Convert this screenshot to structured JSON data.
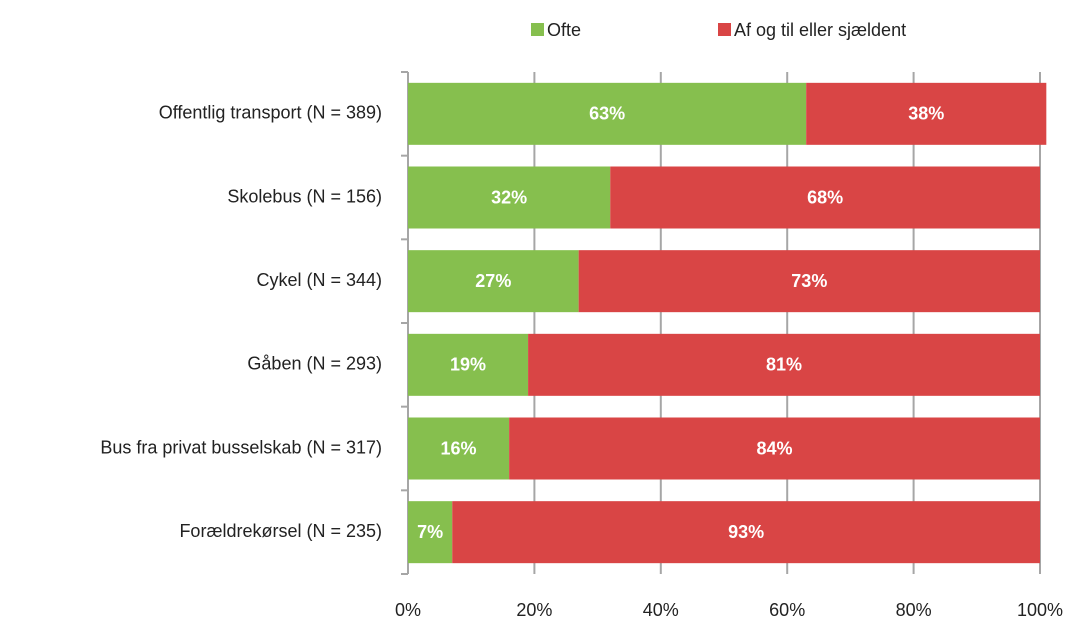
{
  "chart_data": {
    "type": "stacked-barh",
    "categories": [
      "Offentlig transport (N = 389)",
      "Skolebus (N = 156)",
      "Cykel (N = 344)",
      "Gåben (N = 293)",
      "Bus fra privat busselskab (N = 317)",
      "Forældrekørsel (N = 235)"
    ],
    "series": [
      {
        "name": "Ofte",
        "color": "#86bf4e",
        "values": [
          63,
          32,
          27,
          19,
          16,
          7
        ],
        "value_labels": [
          "63%",
          "32%",
          "27%",
          "19%",
          "16%",
          "7%"
        ]
      },
      {
        "name": "Af og til eller sjældent",
        "color": "#d94545",
        "values": [
          38,
          68,
          73,
          81,
          84,
          93
        ],
        "value_labels": [
          "38%",
          "68%",
          "73%",
          "81%",
          "84%",
          "93%"
        ]
      }
    ],
    "xlim": [
      0,
      100
    ],
    "xticks": [
      {
        "value": 0,
        "label": "0%"
      },
      {
        "value": 20,
        "label": "20%"
      },
      {
        "value": 40,
        "label": "40%"
      },
      {
        "value": 60,
        "label": "60%"
      },
      {
        "value": 80,
        "label": "80%"
      },
      {
        "value": 100,
        "label": "100%"
      }
    ],
    "grid": true,
    "legend": "top"
  }
}
